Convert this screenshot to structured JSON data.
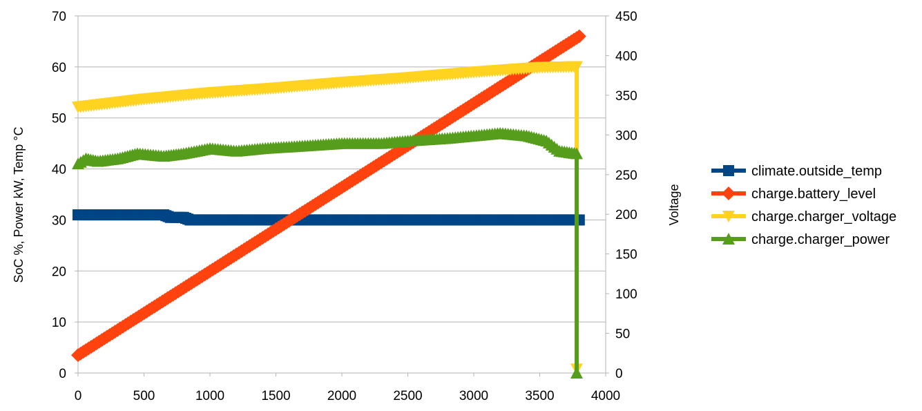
{
  "chart_data": {
    "type": "line",
    "x_axis": {
      "min": 0,
      "max": 4000,
      "ticks": [
        0,
        500,
        1000,
        1500,
        2000,
        2500,
        3000,
        3500,
        4000
      ]
    },
    "y_left": {
      "label": "SoC %, Power kW, Temp °C",
      "min": 0,
      "max": 70,
      "ticks": [
        0,
        10,
        20,
        30,
        40,
        50,
        60,
        70
      ]
    },
    "y_right": {
      "label": "Voltage",
      "min": 0,
      "max": 450,
      "ticks": [
        0,
        50,
        100,
        150,
        200,
        250,
        300,
        350,
        400,
        450
      ]
    },
    "grid": true,
    "legend_position": "right",
    "series": [
      {
        "name": "climate.outside_temp",
        "axis": "left",
        "color": "#004586",
        "marker": "square",
        "points": [
          [
            0,
            31
          ],
          [
            650,
            31
          ],
          [
            700,
            30.5
          ],
          [
            800,
            30.5
          ],
          [
            850,
            30
          ],
          [
            3800,
            30
          ]
        ]
      },
      {
        "name": "charge.battery_level",
        "axis": "left",
        "color": "#ff420e",
        "marker": "diamond",
        "points": [
          [
            0,
            3.5
          ],
          [
            3800,
            66
          ]
        ]
      },
      {
        "name": "charge.charger_voltage",
        "axis": "right",
        "color": "#ffd320",
        "marker": "triangle-down",
        "points": [
          [
            0,
            335
          ],
          [
            500,
            345
          ],
          [
            1000,
            353
          ],
          [
            1500,
            359
          ],
          [
            2000,
            366
          ],
          [
            2500,
            372
          ],
          [
            3000,
            379
          ],
          [
            3500,
            385
          ],
          [
            3780,
            386
          ],
          [
            3780,
            5
          ]
        ]
      },
      {
        "name": "charge.charger_power",
        "axis": "left",
        "color": "#579d1c",
        "marker": "triangle-up",
        "points": [
          [
            0,
            41
          ],
          [
            60,
            42
          ],
          [
            150,
            41.5
          ],
          [
            300,
            42
          ],
          [
            450,
            43
          ],
          [
            650,
            42.5
          ],
          [
            800,
            43
          ],
          [
            1000,
            44
          ],
          [
            1200,
            43.5
          ],
          [
            1400,
            44
          ],
          [
            1700,
            44.5
          ],
          [
            2000,
            45
          ],
          [
            2300,
            45
          ],
          [
            2500,
            45.5
          ],
          [
            2800,
            46
          ],
          [
            3000,
            46.5
          ],
          [
            3200,
            47
          ],
          [
            3400,
            46.5
          ],
          [
            3550,
            45.5
          ],
          [
            3650,
            43.5
          ],
          [
            3780,
            43
          ],
          [
            3780,
            0
          ]
        ]
      }
    ]
  }
}
